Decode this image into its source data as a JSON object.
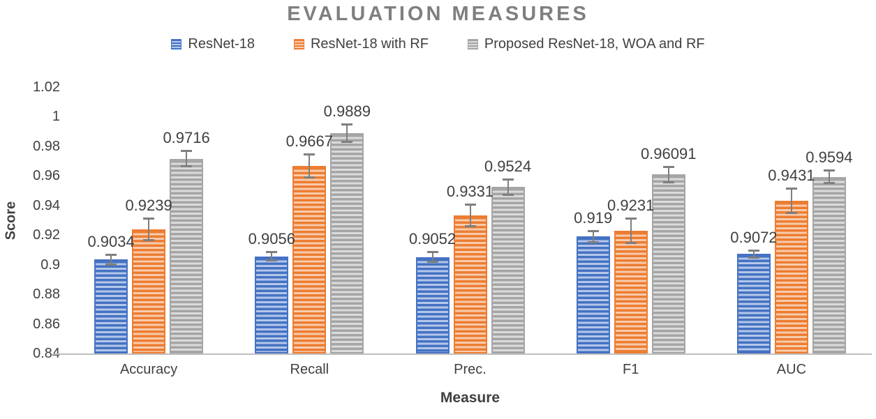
{
  "chart_data": {
    "type": "bar",
    "title": "EVALUATION MEASURES",
    "xlabel": "Measure",
    "ylabel": "Score",
    "categories": [
      "Accuracy",
      "Recall",
      "Prec.",
      "F1",
      "AUC"
    ],
    "series": [
      {
        "name": "ResNet-18",
        "color": "#4472C4",
        "stripe_light": "#b4c7e7",
        "values": [
          0.9034,
          0.9056,
          0.9052,
          0.919,
          0.9072
        ],
        "labels": [
          "0.9034",
          "0.9056",
          "0.9052",
          "0.919",
          "0.9072"
        ],
        "errors": [
          0.004,
          0.0035,
          0.004,
          0.0045,
          0.003
        ]
      },
      {
        "name": "ResNet-18 with RF",
        "color": "#ED7D31",
        "stripe_light": "#f8cbad",
        "values": [
          0.9239,
          0.9667,
          0.9331,
          0.9231,
          0.9431
        ],
        "labels": [
          "0.9239",
          "0.9667",
          "0.9331",
          "0.9231",
          "0.9431"
        ],
        "errors": [
          0.008,
          0.0085,
          0.008,
          0.009,
          0.009
        ]
      },
      {
        "name": "Proposed ResNet-18, WOA and RF",
        "color": "#A5A5A5",
        "stripe_light": "#dbdbdb",
        "values": [
          0.9716,
          0.9889,
          0.9524,
          0.96091,
          0.9594
        ],
        "labels": [
          "0.9716",
          "0.9889",
          "0.9524",
          "0.96091",
          "0.9594"
        ],
        "errors": [
          0.006,
          0.0065,
          0.006,
          0.006,
          0.005
        ]
      }
    ],
    "ylim": [
      0.84,
      1.02
    ],
    "yticks": [
      "1.02",
      "1",
      "0.98",
      "0.96",
      "0.94",
      "0.92",
      "0.9",
      "0.88",
      "0.86",
      "0.84"
    ],
    "grid": false,
    "error_bars": true,
    "legend_position": "top",
    "colors": {
      "title_text": "#7F7F7F",
      "axis_text": "#404040",
      "axis_line": "#BFBFBF",
      "error_bar": "#7F7F7F"
    }
  }
}
